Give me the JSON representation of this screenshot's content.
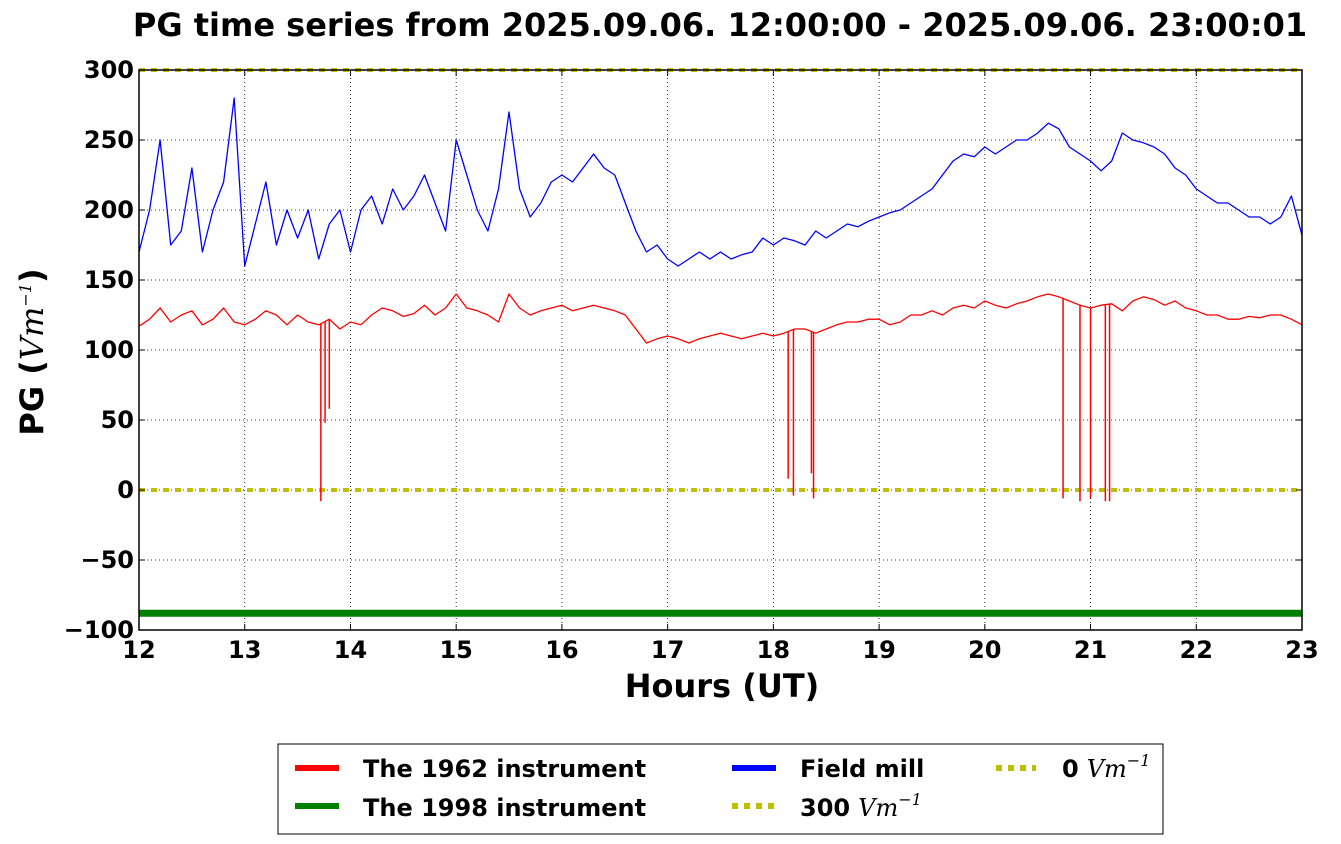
{
  "chart_data": {
    "type": "line",
    "title": "PG time series from 2025.09.06. 12:00:00 - 2025.09.06. 23:00:01",
    "xlabel": "Hours (UT)",
    "ylabel": {
      "text": "PG (",
      "unit_base": "Vm",
      "unit_exp": "−1",
      "close": ")"
    },
    "xlim": [
      12,
      23
    ],
    "ylim": [
      -100,
      300
    ],
    "xticks": [
      12,
      13,
      14,
      15,
      16,
      17,
      18,
      19,
      20,
      21,
      22,
      23
    ],
    "yticks": [
      -100,
      -50,
      0,
      50,
      100,
      150,
      200,
      250,
      300
    ],
    "xtick_labels": [
      "12",
      "13",
      "14",
      "15",
      "16",
      "17",
      "18",
      "19",
      "20",
      "21",
      "22",
      "23"
    ],
    "ytick_labels": [
      "−100",
      "−50",
      "0",
      "50",
      "100",
      "150",
      "200",
      "250",
      "300"
    ],
    "grid": true,
    "legend_position": "bottom-center",
    "series": [
      {
        "name": "The 1962 instrument",
        "color": "#ff0000",
        "x": [
          12.0,
          12.1,
          12.2,
          12.3,
          12.4,
          12.5,
          12.6,
          12.7,
          12.8,
          12.9,
          13.0,
          13.1,
          13.2,
          13.3,
          13.4,
          13.5,
          13.6,
          13.7,
          13.8,
          13.9,
          14.0,
          14.1,
          14.2,
          14.3,
          14.4,
          14.5,
          14.6,
          14.7,
          14.8,
          14.9,
          15.0,
          15.1,
          15.2,
          15.3,
          15.4,
          15.5,
          15.6,
          15.7,
          15.8,
          15.9,
          16.0,
          16.1,
          16.2,
          16.3,
          16.4,
          16.5,
          16.6,
          16.7,
          16.8,
          16.9,
          17.0,
          17.1,
          17.2,
          17.3,
          17.4,
          17.5,
          17.6,
          17.7,
          17.8,
          17.9,
          18.0,
          18.1,
          18.2,
          18.3,
          18.4,
          18.5,
          18.6,
          18.7,
          18.8,
          18.9,
          19.0,
          19.1,
          19.2,
          19.3,
          19.4,
          19.5,
          19.6,
          19.7,
          19.8,
          19.9,
          20.0,
          20.1,
          20.2,
          20.3,
          20.4,
          20.5,
          20.6,
          20.7,
          20.8,
          20.9,
          21.0,
          21.1,
          21.2,
          21.3,
          21.4,
          21.5,
          21.6,
          21.7,
          21.8,
          21.9,
          22.0,
          22.1,
          22.2,
          22.3,
          22.4,
          22.5,
          22.6,
          22.7,
          22.8,
          22.9,
          23.0
        ],
        "values": [
          117,
          122,
          130,
          120,
          125,
          128,
          118,
          122,
          130,
          120,
          118,
          122,
          128,
          125,
          118,
          125,
          120,
          118,
          122,
          115,
          120,
          118,
          125,
          130,
          128,
          124,
          126,
          132,
          125,
          130,
          140,
          130,
          128,
          125,
          120,
          140,
          130,
          125,
          128,
          130,
          132,
          128,
          130,
          132,
          130,
          128,
          125,
          115,
          105,
          108,
          110,
          108,
          105,
          108,
          110,
          112,
          110,
          108,
          110,
          112,
          110,
          112,
          115,
          115,
          112,
          115,
          118,
          120,
          120,
          122,
          122,
          118,
          120,
          125,
          125,
          128,
          125,
          130,
          132,
          130,
          135,
          132,
          130,
          133,
          135,
          138,
          140,
          138,
          135,
          132,
          130,
          132,
          133,
          128,
          135,
          138,
          136,
          132,
          135,
          130,
          128,
          125,
          125,
          122,
          122,
          124,
          123,
          125,
          125,
          122,
          118
        ]
      },
      {
        "name": "The 1998 instrument",
        "color": "#008000",
        "x": [
          12,
          23
        ],
        "values": [
          -88,
          -88
        ]
      },
      {
        "name": "Field mill",
        "color": "#0000ff",
        "x": [
          12.0,
          12.1,
          12.2,
          12.3,
          12.4,
          12.5,
          12.6,
          12.7,
          12.8,
          12.9,
          13.0,
          13.1,
          13.2,
          13.3,
          13.4,
          13.5,
          13.6,
          13.7,
          13.8,
          13.9,
          14.0,
          14.1,
          14.2,
          14.3,
          14.4,
          14.5,
          14.6,
          14.7,
          14.8,
          14.9,
          15.0,
          15.1,
          15.2,
          15.3,
          15.4,
          15.5,
          15.6,
          15.7,
          15.8,
          15.9,
          16.0,
          16.1,
          16.2,
          16.3,
          16.4,
          16.5,
          16.6,
          16.7,
          16.8,
          16.9,
          17.0,
          17.1,
          17.2,
          17.3,
          17.4,
          17.5,
          17.6,
          17.7,
          17.8,
          17.9,
          18.0,
          18.1,
          18.2,
          18.3,
          18.4,
          18.5,
          18.6,
          18.7,
          18.8,
          18.9,
          19.0,
          19.1,
          19.2,
          19.3,
          19.4,
          19.5,
          19.6,
          19.7,
          19.8,
          19.9,
          20.0,
          20.1,
          20.2,
          20.3,
          20.4,
          20.5,
          20.6,
          20.7,
          20.8,
          20.9,
          21.0,
          21.1,
          21.2,
          21.3,
          21.4,
          21.5,
          21.6,
          21.7,
          21.8,
          21.9,
          22.0,
          22.1,
          22.2,
          22.3,
          22.4,
          22.5,
          22.6,
          22.7,
          22.8,
          22.9,
          23.0
        ],
        "values": [
          170,
          200,
          250,
          175,
          185,
          230,
          170,
          200,
          220,
          280,
          160,
          190,
          220,
          175,
          200,
          180,
          200,
          165,
          190,
          200,
          170,
          200,
          210,
          190,
          215,
          200,
          210,
          225,
          205,
          185,
          250,
          225,
          200,
          185,
          215,
          270,
          215,
          195,
          205,
          220,
          225,
          220,
          230,
          240,
          230,
          225,
          205,
          185,
          170,
          175,
          165,
          160,
          165,
          170,
          165,
          170,
          165,
          168,
          170,
          180,
          175,
          180,
          178,
          175,
          185,
          180,
          185,
          190,
          188,
          192,
          195,
          198,
          200,
          205,
          210,
          215,
          225,
          235,
          240,
          238,
          245,
          240,
          245,
          250,
          250,
          255,
          262,
          258,
          245,
          240,
          235,
          228,
          235,
          255,
          250,
          248,
          245,
          240,
          230,
          225,
          215,
          210,
          205,
          205,
          200,
          195,
          195,
          190,
          195,
          210,
          182
        ]
      },
      {
        "name": "300",
        "unit_base": "Vm",
        "unit_exp": "−1",
        "color": "#bfbf00",
        "dashed": true,
        "x": [
          12,
          23
        ],
        "values": [
          300,
          300
        ]
      },
      {
        "name": "0",
        "unit_base": "Vm",
        "unit_exp": "−1",
        "color": "#bfbf00",
        "dashed": true,
        "x": [
          12,
          23
        ],
        "values": [
          0,
          0
        ]
      }
    ],
    "spikes_1962": [
      {
        "x": 13.72,
        "value": -8
      },
      {
        "x": 13.76,
        "value": 48
      },
      {
        "x": 13.8,
        "value": 58
      },
      {
        "x": 18.14,
        "value": 8
      },
      {
        "x": 18.19,
        "value": -4
      },
      {
        "x": 18.36,
        "value": 12
      },
      {
        "x": 18.38,
        "value": -6
      },
      {
        "x": 20.74,
        "value": -6
      },
      {
        "x": 20.9,
        "value": -8
      },
      {
        "x": 21.0,
        "value": -6
      },
      {
        "x": 21.14,
        "value": -8
      },
      {
        "x": 21.18,
        "value": -8
      }
    ]
  }
}
